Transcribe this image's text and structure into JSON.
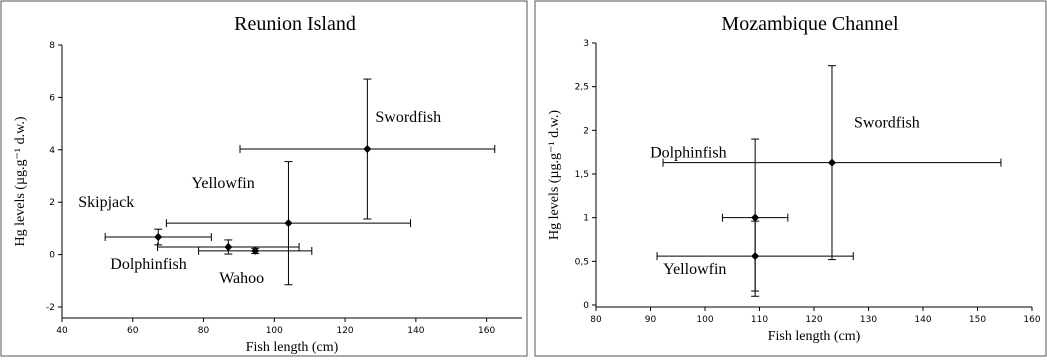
{
  "chart_data": [
    {
      "type": "scatter",
      "title": "Reunion Island",
      "xlabel": "Fish length (cm)",
      "ylabel": "Hg levels (µg.g⁻¹ d.w.)",
      "labels": [
        "Swordfish",
        "Yellowfin",
        "Skipjack",
        "Dolphinfish",
        "Wahoo"
      ],
      "x": [
        126.3,
        104,
        67.2,
        87,
        94.6
      ],
      "values": [
        4.03,
        1.2,
        0.67,
        0.29,
        0.14
      ],
      "xerr": [
        36,
        34.5,
        15,
        20,
        16
      ],
      "yerr": [
        2.67,
        2.35,
        0.3,
        0.27,
        0.1
      ],
      "color": "#000000",
      "xlim": [
        40,
        170
      ],
      "ylim": [
        -2,
        8
      ],
      "xticks": [
        40,
        60,
        80,
        100,
        120,
        140,
        160
      ],
      "yticks": [
        -2,
        0,
        2,
        4,
        6,
        8
      ]
    },
    {
      "type": "scatter",
      "title": "Mozambique Channel",
      "xlabel": "Fish length (cm)",
      "ylabel": "Hg levels (µg.g⁻¹ d.w.)",
      "labels": [
        "Swordfish",
        "Dolphinfish",
        "Yellowfin"
      ],
      "x": [
        123.3,
        109.2,
        109.2
      ],
      "values": [
        1.63,
        1.0,
        0.56
      ],
      "xerr": [
        31,
        6,
        18
      ],
      "yerr": [
        1.11,
        0.9,
        0.4
      ],
      "color": "#000000",
      "xlim": [
        80,
        160
      ],
      "ylim": [
        0,
        3
      ],
      "xticks": [
        80,
        90,
        100,
        110,
        120,
        130,
        140,
        150,
        160
      ],
      "yticks": [
        0,
        {
          "value": 0.5,
          "label": "0,5"
        },
        1,
        {
          "value": 1.5,
          "label": "1,5"
        },
        2,
        {
          "value": 2.5,
          "label": "2,5"
        },
        3
      ]
    }
  ]
}
